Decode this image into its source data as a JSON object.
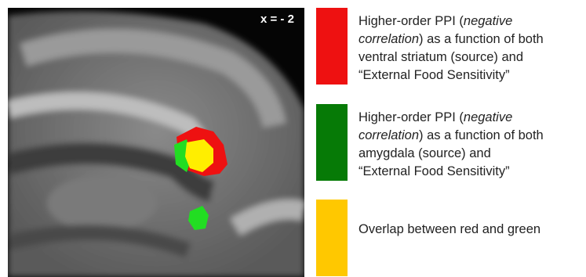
{
  "image_label": "x = - 2",
  "legend": [
    {
      "color": "#ee1111",
      "lines": [
        [
          {
            "text": "Higher-order PPI ("
          },
          {
            "text": "negative",
            "italic": true
          }
        ],
        [
          {
            "text": "correlation",
            "italic": true
          },
          {
            "text": ") as a function of both"
          }
        ],
        [
          {
            "text": "ventral striatum (source) and"
          }
        ],
        [
          {
            "text": "“External Food Sensitivity”"
          }
        ]
      ]
    },
    {
      "color": "#067a06",
      "lines": [
        [
          {
            "text": "Higher-order PPI ("
          },
          {
            "text": "negative",
            "italic": true
          }
        ],
        [
          {
            "text": "correlation",
            "italic": true
          },
          {
            "text": ") as a function of both"
          }
        ],
        [
          {
            "text": "amygdala (source) and"
          }
        ],
        [
          {
            "text": "“External Food Sensitivity”"
          }
        ]
      ]
    },
    {
      "color": "#ffc800",
      "lines": [
        [
          {
            "text": "Overlap between red and green"
          }
        ]
      ]
    }
  ]
}
